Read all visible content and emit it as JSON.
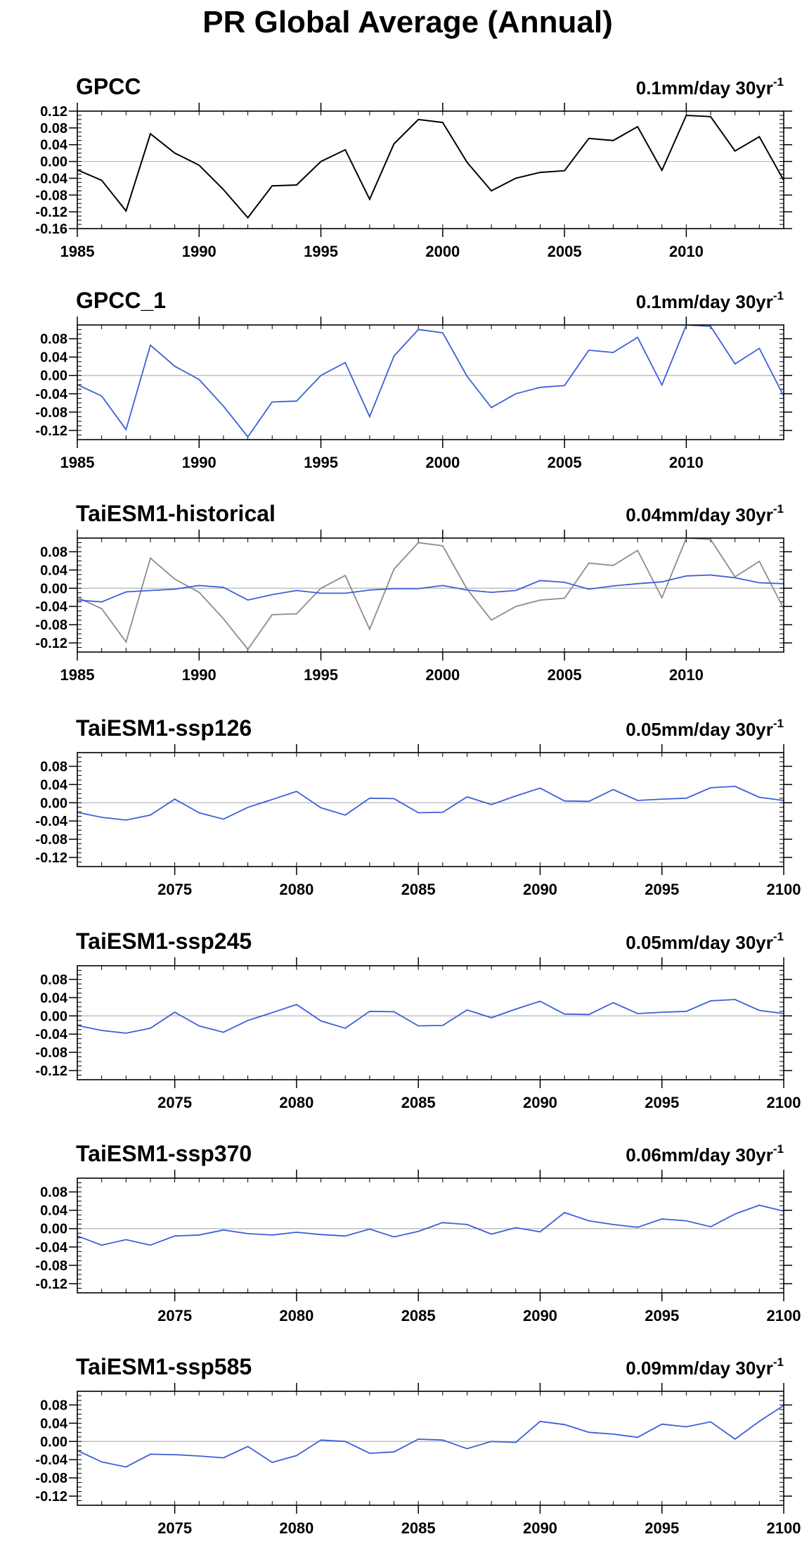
{
  "figure_title": "PR Global Average (Annual)",
  "colors": {
    "obs_line": "#000000",
    "model_line": "#3d5fd8",
    "obs_overlay": "#8c8c8c",
    "zero_line": "#b4b4b4"
  },
  "chart_data": [
    {
      "type": "line",
      "title": "GPCC",
      "trend_label": "0.1mm/day 30yr",
      "trend_label_sup": "-1",
      "xlim": [
        1985,
        2014
      ],
      "x_ticks": [
        1985,
        1990,
        1995,
        2000,
        2005,
        2010
      ],
      "ylim": [
        -0.16,
        0.12
      ],
      "y_ticks": [
        "-0.16",
        "-0.12",
        "-0.08",
        "-0.04",
        "0.00",
        "0.04",
        "0.08",
        "0.12"
      ],
      "series": [
        {
          "role": "obs",
          "x": [
            1985,
            1986,
            1987,
            1988,
            1989,
            1990,
            1991,
            1992,
            1993,
            1994,
            1995,
            1996,
            1997,
            1998,
            1999,
            2000,
            2001,
            2002,
            2003,
            2004,
            2005,
            2006,
            2007,
            2008,
            2009,
            2010,
            2011,
            2012,
            2013,
            2014
          ],
          "values": [
            -0.02,
            -0.045,
            -0.118,
            0.066,
            0.02,
            -0.009,
            -0.067,
            -0.134,
            -0.058,
            -0.056,
            0.0,
            0.028,
            -0.09,
            0.042,
            0.1,
            0.093,
            -0.002,
            -0.07,
            -0.04,
            -0.026,
            -0.022,
            0.055,
            0.05,
            0.083,
            -0.021,
            0.11,
            0.107,
            0.025,
            0.059,
            -0.045
          ]
        }
      ]
    },
    {
      "type": "line",
      "title": "GPCC_1",
      "trend_label": "0.1mm/day 30yr",
      "trend_label_sup": "-1",
      "xlim": [
        1985,
        2014
      ],
      "x_ticks": [
        1985,
        1990,
        1995,
        2000,
        2005,
        2010
      ],
      "ylim": [
        -0.14,
        0.11
      ],
      "y_ticks": [
        "-0.12",
        "-0.08",
        "-0.04",
        "0.00",
        "0.04",
        "0.08"
      ],
      "series": [
        {
          "role": "model",
          "x": [
            1985,
            1986,
            1987,
            1988,
            1989,
            1990,
            1991,
            1992,
            1993,
            1994,
            1995,
            1996,
            1997,
            1998,
            1999,
            2000,
            2001,
            2002,
            2003,
            2004,
            2005,
            2006,
            2007,
            2008,
            2009,
            2010,
            2011,
            2012,
            2013,
            2014
          ],
          "values": [
            -0.02,
            -0.045,
            -0.118,
            0.066,
            0.02,
            -0.009,
            -0.067,
            -0.134,
            -0.058,
            -0.056,
            0.0,
            0.028,
            -0.09,
            0.042,
            0.1,
            0.093,
            -0.002,
            -0.07,
            -0.04,
            -0.026,
            -0.022,
            0.055,
            0.05,
            0.083,
            -0.021,
            0.11,
            0.107,
            0.025,
            0.059,
            -0.045
          ]
        }
      ]
    },
    {
      "type": "line",
      "title": "TaiESM1-historical",
      "trend_label": "0.04mm/day 30yr",
      "trend_label_sup": "-1",
      "xlim": [
        1985,
        2014
      ],
      "x_ticks": [
        1985,
        1990,
        1995,
        2000,
        2005,
        2010
      ],
      "ylim": [
        -0.14,
        0.11
      ],
      "y_ticks": [
        "-0.12",
        "-0.08",
        "-0.04",
        "0.00",
        "0.04",
        "0.08"
      ],
      "series": [
        {
          "role": "obs_overlay",
          "x": [
            1985,
            1986,
            1987,
            1988,
            1989,
            1990,
            1991,
            1992,
            1993,
            1994,
            1995,
            1996,
            1997,
            1998,
            1999,
            2000,
            2001,
            2002,
            2003,
            2004,
            2005,
            2006,
            2007,
            2008,
            2009,
            2010,
            2011,
            2012,
            2013,
            2014
          ],
          "values": [
            -0.02,
            -0.045,
            -0.118,
            0.066,
            0.02,
            -0.009,
            -0.067,
            -0.134,
            -0.058,
            -0.056,
            0.0,
            0.028,
            -0.09,
            0.042,
            0.1,
            0.093,
            -0.002,
            -0.07,
            -0.04,
            -0.026,
            -0.022,
            0.055,
            0.05,
            0.083,
            -0.021,
            0.11,
            0.107,
            0.025,
            0.059,
            -0.045
          ]
        },
        {
          "role": "model",
          "x": [
            1985,
            1986,
            1987,
            1988,
            1989,
            1990,
            1991,
            1992,
            1993,
            1994,
            1995,
            1996,
            1997,
            1998,
            1999,
            2000,
            2001,
            2002,
            2003,
            2004,
            2005,
            2006,
            2007,
            2008,
            2009,
            2010,
            2011,
            2012,
            2013,
            2014
          ],
          "values": [
            -0.026,
            -0.03,
            -0.008,
            -0.005,
            -0.002,
            0.006,
            0.002,
            -0.026,
            -0.014,
            -0.005,
            -0.011,
            -0.011,
            -0.004,
            -0.001,
            -0.001,
            0.006,
            -0.004,
            -0.009,
            -0.005,
            0.017,
            0.013,
            -0.002,
            0.005,
            0.01,
            0.014,
            0.027,
            0.029,
            0.023,
            0.012,
            0.01
          ]
        }
      ]
    },
    {
      "type": "line",
      "title": "TaiESM1-ssp126",
      "trend_label": "0.05mm/day 30yr",
      "trend_label_sup": "-1",
      "xlim": [
        2071,
        2100
      ],
      "x_ticks": [
        2075,
        2080,
        2085,
        2090,
        2095,
        2100
      ],
      "ylim": [
        -0.14,
        0.11
      ],
      "y_ticks": [
        "-0.12",
        "-0.08",
        "-0.04",
        "0.00",
        "0.04",
        "0.08"
      ],
      "series": [
        {
          "role": "model",
          "x": [
            2071,
            2072,
            2073,
            2074,
            2075,
            2076,
            2077,
            2078,
            2079,
            2080,
            2081,
            2082,
            2083,
            2084,
            2085,
            2086,
            2087,
            2088,
            2089,
            2090,
            2091,
            2092,
            2093,
            2094,
            2095,
            2096,
            2097,
            2098,
            2099,
            2100
          ],
          "values": [
            -0.021,
            -0.032,
            -0.038,
            -0.027,
            0.008,
            -0.022,
            -0.036,
            -0.01,
            0.007,
            0.025,
            -0.011,
            -0.027,
            0.01,
            0.009,
            -0.022,
            -0.021,
            0.013,
            -0.004,
            0.015,
            0.032,
            0.004,
            0.003,
            0.029,
            0.005,
            0.008,
            0.01,
            0.033,
            0.036,
            0.012,
            0.005
          ]
        }
      ]
    },
    {
      "type": "line",
      "title": "TaiESM1-ssp245",
      "trend_label": "0.05mm/day 30yr",
      "trend_label_sup": "-1",
      "xlim": [
        2071,
        2100
      ],
      "x_ticks": [
        2075,
        2080,
        2085,
        2090,
        2095,
        2100
      ],
      "ylim": [
        -0.14,
        0.11
      ],
      "y_ticks": [
        "-0.12",
        "-0.08",
        "-0.04",
        "0.00",
        "0.04",
        "0.08"
      ],
      "series": [
        {
          "role": "model",
          "x": [
            2071,
            2072,
            2073,
            2074,
            2075,
            2076,
            2077,
            2078,
            2079,
            2080,
            2081,
            2082,
            2083,
            2084,
            2085,
            2086,
            2087,
            2088,
            2089,
            2090,
            2091,
            2092,
            2093,
            2094,
            2095,
            2096,
            2097,
            2098,
            2099,
            2100
          ],
          "values": [
            -0.021,
            -0.032,
            -0.038,
            -0.027,
            0.008,
            -0.022,
            -0.036,
            -0.01,
            0.007,
            0.025,
            -0.011,
            -0.027,
            0.01,
            0.009,
            -0.022,
            -0.021,
            0.013,
            -0.004,
            0.015,
            0.032,
            0.004,
            0.003,
            0.029,
            0.005,
            0.008,
            0.01,
            0.033,
            0.036,
            0.012,
            0.005
          ]
        }
      ]
    },
    {
      "type": "line",
      "title": "TaiESM1-ssp370",
      "trend_label": "0.06mm/day 30yr",
      "trend_label_sup": "-1",
      "xlim": [
        2071,
        2100
      ],
      "x_ticks": [
        2075,
        2080,
        2085,
        2090,
        2095,
        2100
      ],
      "ylim": [
        -0.14,
        0.11
      ],
      "y_ticks": [
        "-0.12",
        "-0.08",
        "-0.04",
        "0.00",
        "0.04",
        "0.08"
      ],
      "series": [
        {
          "role": "model",
          "x": [
            2071,
            2072,
            2073,
            2074,
            2075,
            2076,
            2077,
            2078,
            2079,
            2080,
            2081,
            2082,
            2083,
            2084,
            2085,
            2086,
            2087,
            2088,
            2089,
            2090,
            2091,
            2092,
            2093,
            2094,
            2095,
            2096,
            2097,
            2098,
            2099,
            2100
          ],
          "values": [
            -0.016,
            -0.036,
            -0.024,
            -0.036,
            -0.016,
            -0.014,
            -0.003,
            -0.011,
            -0.014,
            -0.008,
            -0.013,
            -0.016,
            -0.001,
            -0.018,
            -0.006,
            0.013,
            0.009,
            -0.012,
            0.002,
            -0.007,
            0.035,
            0.017,
            0.009,
            0.003,
            0.021,
            0.017,
            0.004,
            0.032,
            0.051,
            0.038
          ]
        }
      ]
    },
    {
      "type": "line",
      "title": "TaiESM1-ssp585",
      "trend_label": "0.09mm/day 30yr",
      "trend_label_sup": "-1",
      "xlim": [
        2071,
        2100
      ],
      "x_ticks": [
        2075,
        2080,
        2085,
        2090,
        2095,
        2100
      ],
      "ylim": [
        -0.14,
        0.11
      ],
      "y_ticks": [
        "-0.12",
        "-0.08",
        "-0.04",
        "0.00",
        "0.04",
        "0.08"
      ],
      "series": [
        {
          "role": "model",
          "x": [
            2071,
            2072,
            2073,
            2074,
            2075,
            2076,
            2077,
            2078,
            2079,
            2080,
            2081,
            2082,
            2083,
            2084,
            2085,
            2086,
            2087,
            2088,
            2089,
            2090,
            2091,
            2092,
            2093,
            2094,
            2095,
            2096,
            2097,
            2098,
            2099,
            2100
          ],
          "values": [
            -0.02,
            -0.045,
            -0.056,
            -0.028,
            -0.029,
            -0.032,
            -0.036,
            -0.011,
            -0.046,
            -0.031,
            0.003,
            0.0,
            -0.026,
            -0.023,
            0.005,
            0.003,
            -0.016,
            0.0,
            -0.002,
            0.044,
            0.037,
            0.02,
            0.016,
            0.009,
            0.038,
            0.032,
            0.043,
            0.005,
            0.044,
            0.079
          ]
        }
      ]
    }
  ]
}
